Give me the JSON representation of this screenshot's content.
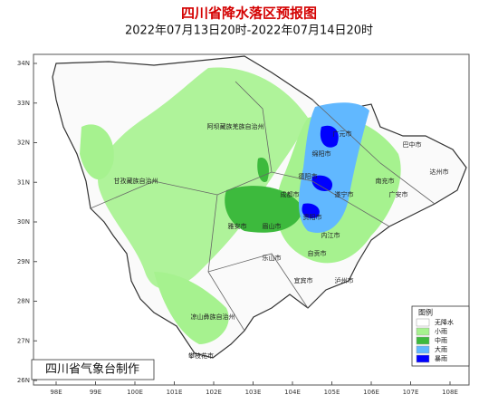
{
  "header": {
    "title": "四川省降水落区预报图",
    "subtitle": "2022年07月13日20时-2022年07月14日20时"
  },
  "lat_labels": [
    "34N",
    "33N",
    "32N",
    "31N",
    "30N",
    "29N",
    "28N",
    "27N",
    "26N"
  ],
  "lon_labels": [
    "98E",
    "99E",
    "100E",
    "101E",
    "102E",
    "103E",
    "104E",
    "105E",
    "106E",
    "107E",
    "108E"
  ],
  "cities": [
    "广元市",
    "巴中市",
    "达州市",
    "绵阳市",
    "南充市",
    "德阳市",
    "成都市",
    "遂宁市",
    "广安市",
    "资阳市",
    "眉山市",
    "雅安市",
    "内江市",
    "乐山市",
    "自贡市",
    "宜宾市",
    "泸州市",
    "阿坝藏族羌族自治州",
    "甘孜藏族自治州",
    "凉山彝族自治州",
    "攀枝花市"
  ],
  "legend": {
    "title": "图例",
    "items": [
      {
        "label": "无降水",
        "color": "#ffffff"
      },
      {
        "label": "小雨",
        "color": "#a6f28f"
      },
      {
        "label": "中雨",
        "color": "#3dba3d"
      },
      {
        "label": "大雨",
        "color": "#61b8ff"
      },
      {
        "label": "暴雨",
        "color": "#0000fe"
      }
    ]
  },
  "footer": "四川省气象台制作"
}
